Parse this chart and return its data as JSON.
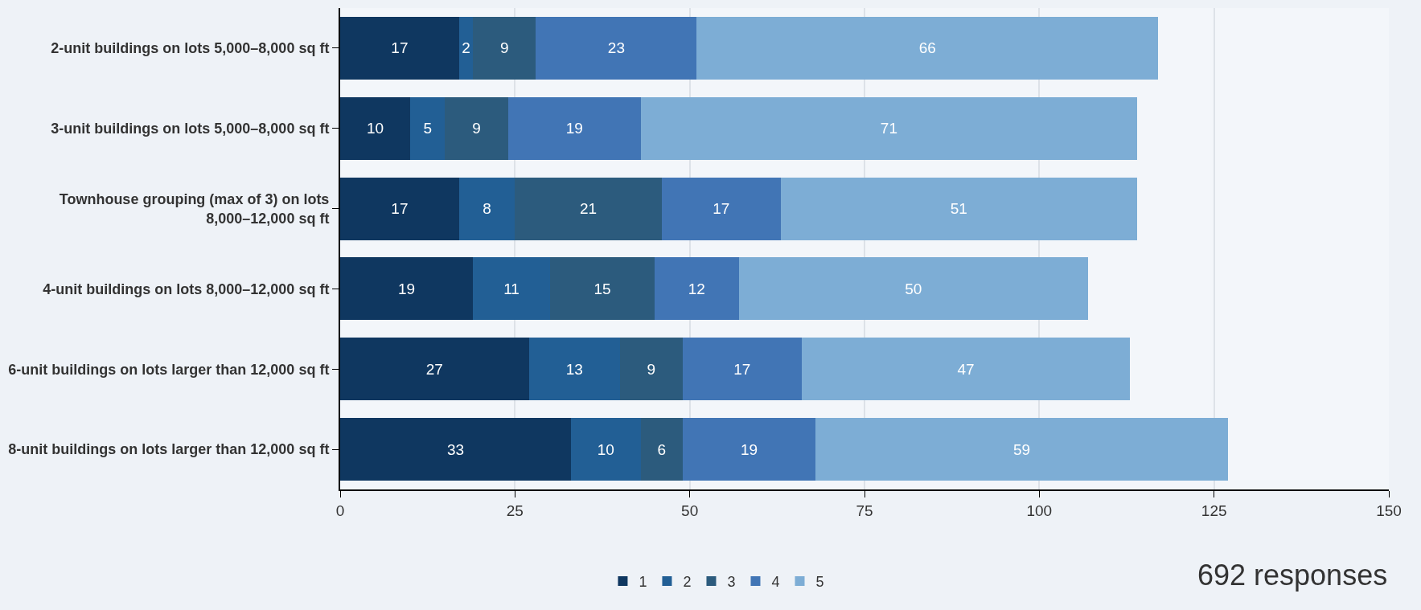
{
  "chart_data": {
    "type": "bar",
    "orientation": "horizontal",
    "stacked": true,
    "categories": [
      "2-unit buildings on lots 5,000–8,000 sq ft",
      "3-unit buildings on lots 5,000–8,000 sq ft",
      "Townhouse grouping (max of 3) on lots 8,000–12,000 sq ft",
      "4-unit buildings on lots 8,000–12,000 sq ft",
      "6-unit buildings on lots larger than 12,000 sq ft",
      "8-unit buildings on lots larger than 12,000 sq ft"
    ],
    "series": [
      {
        "name": "1",
        "color": "#0f3760",
        "values": [
          17,
          10,
          17,
          19,
          27,
          33
        ]
      },
      {
        "name": "2",
        "color": "#225f95",
        "values": [
          2,
          5,
          8,
          11,
          13,
          10
        ]
      },
      {
        "name": "3",
        "color": "#2c5b7d",
        "values": [
          9,
          9,
          21,
          15,
          9,
          6
        ]
      },
      {
        "name": "4",
        "color": "#4175b5",
        "values": [
          23,
          19,
          17,
          12,
          17,
          19
        ]
      },
      {
        "name": "5",
        "color": "#7dadd5",
        "values": [
          66,
          71,
          51,
          50,
          47,
          59
        ]
      }
    ],
    "xlim": [
      0,
      150
    ],
    "xticks": [
      0,
      25,
      50,
      75,
      100,
      125,
      150
    ],
    "grid": "x",
    "legend": "bottom",
    "data_labels": true,
    "annotations": [
      "692 responses"
    ]
  }
}
